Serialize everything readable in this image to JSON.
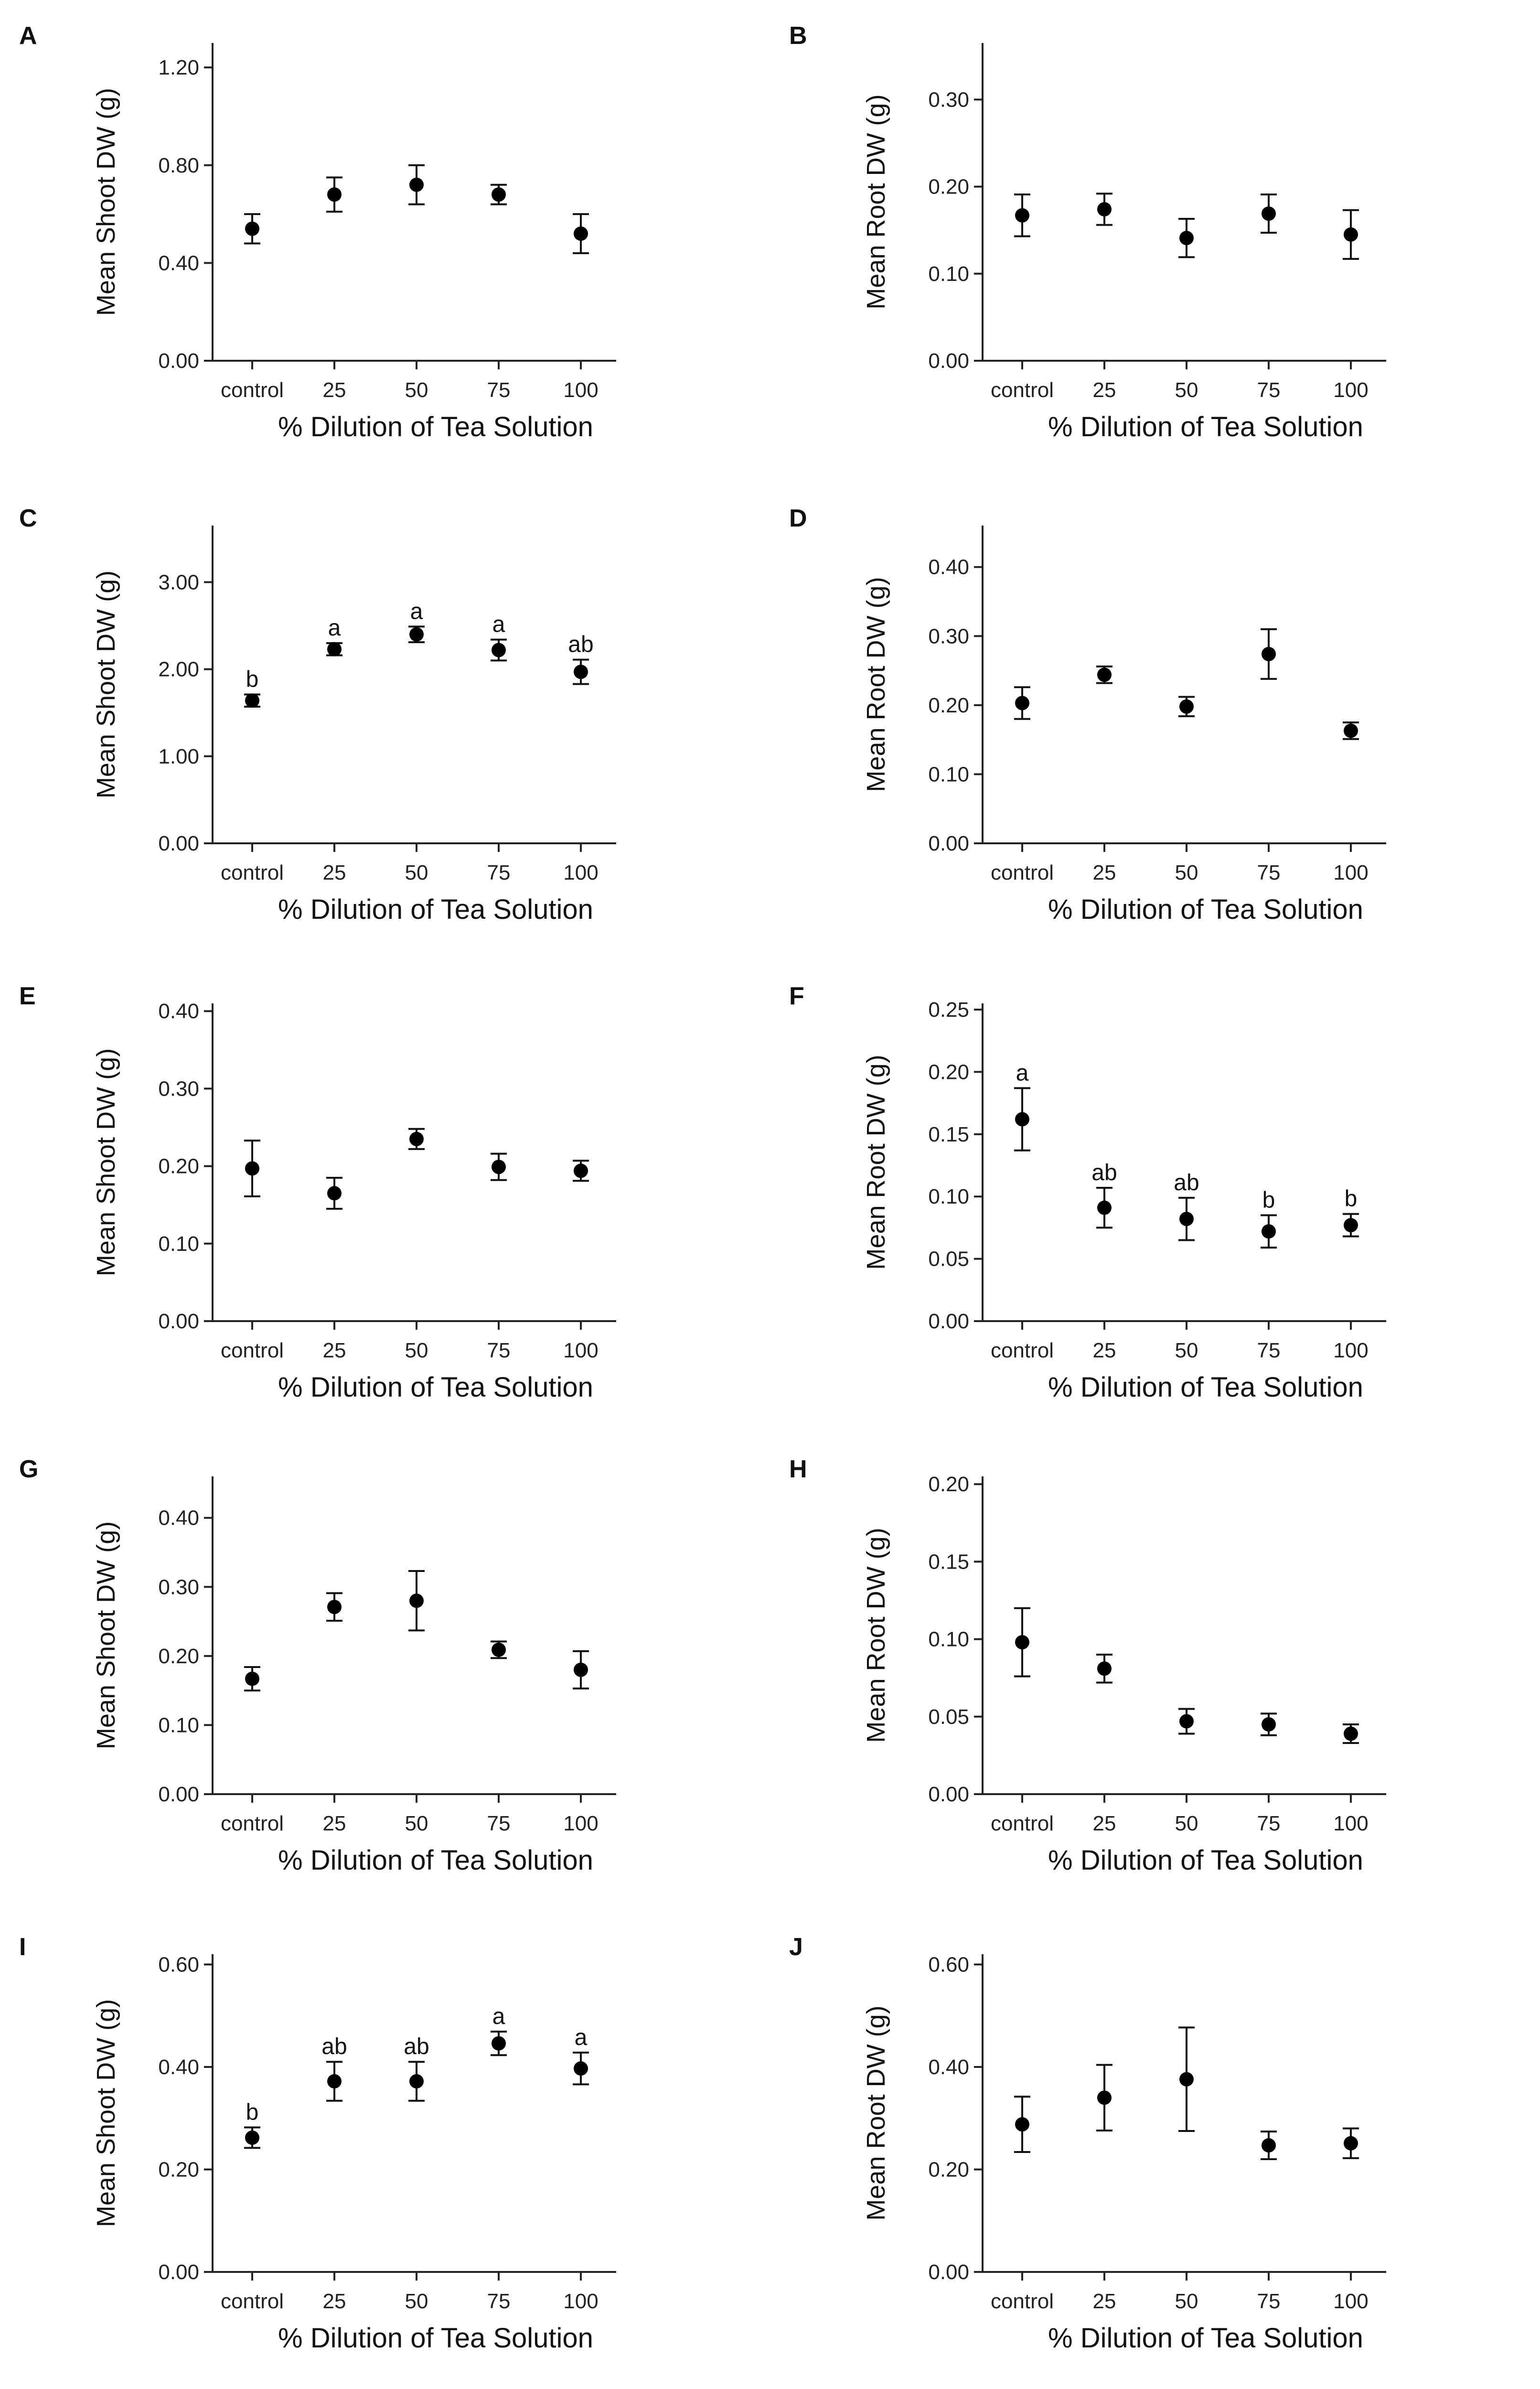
{
  "figure": {
    "xlabel": "% Dilution of Tea Solution",
    "categories": [
      "control",
      "25",
      "50",
      "75",
      "100"
    ]
  },
  "chart_data": [
    {
      "id": "A",
      "type": "scatter",
      "panel": "A",
      "ylabel": "Mean Shoot DW (g)",
      "ylim": [
        0,
        1.3
      ],
      "yticks": [
        0,
        0.4,
        0.8,
        1.2
      ],
      "yticklabels": [
        "0.00",
        "0.40",
        "0.80",
        "1.20"
      ],
      "categories": [
        "control",
        "25",
        "50",
        "75",
        "100"
      ],
      "values": [
        0.54,
        0.68,
        0.72,
        0.68,
        0.52
      ],
      "err": [
        0.06,
        0.07,
        0.08,
        0.04,
        0.08
      ],
      "sig": [
        "",
        "",
        "",
        "",
        ""
      ]
    },
    {
      "id": "B",
      "type": "scatter",
      "panel": "B",
      "ylabel": "Mean Root DW (g)",
      "ylim": [
        0,
        0.365
      ],
      "yticks": [
        0,
        0.1,
        0.2,
        0.3
      ],
      "yticklabels": [
        "0.00",
        "0.10",
        "0.20",
        "0.30"
      ],
      "categories": [
        "control",
        "25",
        "50",
        "75",
        "100"
      ],
      "values": [
        0.167,
        0.174,
        0.141,
        0.169,
        0.145
      ],
      "err": [
        0.024,
        0.018,
        0.022,
        0.022,
        0.028
      ],
      "sig": [
        "",
        "",
        "",
        "",
        ""
      ]
    },
    {
      "id": "C",
      "type": "scatter",
      "panel": "C",
      "ylabel": "Mean Shoot DW (g)",
      "ylim": [
        0,
        3.65
      ],
      "yticks": [
        0,
        1,
        2,
        3
      ],
      "yticklabels": [
        "0.00",
        "1.00",
        "2.00",
        "3.00"
      ],
      "categories": [
        "control",
        "25",
        "50",
        "75",
        "100"
      ],
      "values": [
        1.64,
        2.23,
        2.4,
        2.22,
        1.97
      ],
      "err": [
        0.07,
        0.07,
        0.09,
        0.12,
        0.14
      ],
      "sig": [
        "b",
        "a",
        "a",
        "a",
        "ab"
      ]
    },
    {
      "id": "D",
      "type": "scatter",
      "panel": "D",
      "ylabel": "Mean Root DW (g)",
      "ylim": [
        0,
        0.46
      ],
      "yticks": [
        0,
        0.1,
        0.2,
        0.3,
        0.4
      ],
      "yticklabels": [
        "0.00",
        "0.10",
        "0.20",
        "0.30",
        "0.40"
      ],
      "categories": [
        "control",
        "25",
        "50",
        "75",
        "100"
      ],
      "values": [
        0.203,
        0.244,
        0.198,
        0.274,
        0.163
      ],
      "err": [
        0.023,
        0.012,
        0.014,
        0.036,
        0.012
      ],
      "sig": [
        "",
        "",
        "",
        "",
        ""
      ]
    },
    {
      "id": "E",
      "type": "scatter",
      "panel": "E",
      "ylabel": "Mean Shoot DW (g)",
      "ylim": [
        0,
        0.41
      ],
      "yticks": [
        0,
        0.1,
        0.2,
        0.3,
        0.4
      ],
      "yticklabels": [
        "0.00",
        "0.10",
        "0.20",
        "0.30",
        "0.40"
      ],
      "categories": [
        "control",
        "25",
        "50",
        "75",
        "100"
      ],
      "values": [
        0.197,
        0.165,
        0.235,
        0.199,
        0.194
      ],
      "err": [
        0.036,
        0.02,
        0.013,
        0.017,
        0.013
      ],
      "sig": [
        "",
        "",
        "",
        "",
        ""
      ]
    },
    {
      "id": "F",
      "type": "scatter",
      "panel": "F",
      "ylabel": "Mean Root DW (g)",
      "ylim": [
        0,
        0.255
      ],
      "yticks": [
        0,
        0.05,
        0.1,
        0.15,
        0.2,
        0.25
      ],
      "yticklabels": [
        "0.00",
        "0.05",
        "0.10",
        "0.15",
        "0.20",
        "0.25"
      ],
      "categories": [
        "control",
        "25",
        "50",
        "75",
        "100"
      ],
      "values": [
        0.162,
        0.091,
        0.082,
        0.072,
        0.077
      ],
      "err": [
        0.025,
        0.016,
        0.017,
        0.013,
        0.009
      ],
      "sig": [
        "a",
        "ab",
        "ab",
        "b",
        "b"
      ]
    },
    {
      "id": "G",
      "type": "scatter",
      "panel": "G",
      "ylabel": "Mean Shoot DW (g)",
      "ylim": [
        0,
        0.46
      ],
      "yticks": [
        0,
        0.1,
        0.2,
        0.3,
        0.4
      ],
      "yticklabels": [
        "0.00",
        "0.10",
        "0.20",
        "0.30",
        "0.40"
      ],
      "categories": [
        "control",
        "25",
        "50",
        "75",
        "100"
      ],
      "values": [
        0.167,
        0.271,
        0.28,
        0.209,
        0.18
      ],
      "err": [
        0.017,
        0.02,
        0.043,
        0.012,
        0.027
      ],
      "sig": [
        "",
        "",
        "",
        "",
        ""
      ]
    },
    {
      "id": "H",
      "type": "scatter",
      "panel": "H",
      "ylabel": "Mean Root DW (g)",
      "ylim": [
        0,
        0.205
      ],
      "yticks": [
        0,
        0.05,
        0.1,
        0.15,
        0.2
      ],
      "yticklabels": [
        "0.00",
        "0.05",
        "0.10",
        "0.15",
        "0.20"
      ],
      "categories": [
        "control",
        "25",
        "50",
        "75",
        "100"
      ],
      "values": [
        0.098,
        0.081,
        0.047,
        0.045,
        0.039
      ],
      "err": [
        0.022,
        0.009,
        0.008,
        0.007,
        0.006
      ],
      "sig": [
        "",
        "",
        "",
        "",
        ""
      ]
    },
    {
      "id": "I",
      "type": "scatter",
      "panel": "I",
      "ylabel": "Mean Shoot DW (g)",
      "ylim": [
        0,
        0.62
      ],
      "yticks": [
        0,
        0.2,
        0.4,
        0.6
      ],
      "yticklabels": [
        "0.00",
        "0.20",
        "0.40",
        "0.60"
      ],
      "categories": [
        "control",
        "25",
        "50",
        "75",
        "100"
      ],
      "values": [
        0.262,
        0.372,
        0.372,
        0.446,
        0.397
      ],
      "err": [
        0.02,
        0.038,
        0.038,
        0.023,
        0.031
      ],
      "sig": [
        "b",
        "ab",
        "ab",
        "a",
        "a"
      ]
    },
    {
      "id": "J",
      "type": "scatter",
      "panel": "J",
      "ylabel": "Mean Root DW (g)",
      "ylim": [
        0,
        0.62
      ],
      "yticks": [
        0,
        0.2,
        0.4,
        0.6
      ],
      "yticklabels": [
        "0.00",
        "0.20",
        "0.40",
        "0.60"
      ],
      "categories": [
        "control",
        "25",
        "50",
        "75",
        "100"
      ],
      "values": [
        0.288,
        0.34,
        0.376,
        0.247,
        0.251
      ],
      "err": [
        0.054,
        0.064,
        0.101,
        0.027,
        0.029
      ],
      "sig": [
        "",
        "",
        "",
        "",
        ""
      ]
    }
  ]
}
